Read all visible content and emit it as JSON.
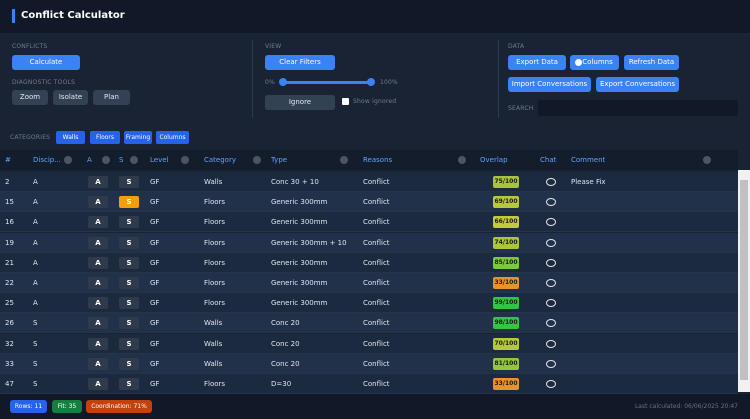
{
  "header": {
    "title": "Conflict Calculator"
  },
  "toolbar": {
    "conflicts": {
      "label": "CONFLICTS",
      "calculate": "Calculate",
      "diagnostic_label": "DIAGNOSTIC TOOLS",
      "zoom": "Zoom",
      "isolate": "Isolate",
      "plan": "Plan"
    },
    "view": {
      "label": "VIEW",
      "clear_filters": "Clear Filters",
      "slider_min": "0%",
      "slider_max": "100%",
      "ignore": "Ignore",
      "show_ignored": "Show ignored"
    },
    "data": {
      "label": "DATA",
      "export_data": "Export Data",
      "columns": "Columns",
      "refresh_data": "Refresh Data",
      "import_conversations": "Import Conversations",
      "export_conversations": "Export Conversations",
      "search_label": "SEARCH"
    }
  },
  "categories": {
    "label": "CATEGORIES",
    "chips": [
      "Walls",
      "Floors",
      "Framing",
      "Columns"
    ]
  },
  "table": {
    "columns": [
      "#",
      "Discip...",
      "A",
      "S",
      "Level",
      "Category",
      "Type",
      "Reasons",
      "Overlap",
      "Chat",
      "Comment"
    ],
    "rows": [
      {
        "id": "2",
        "discipline": "A",
        "a": "A",
        "s": "S",
        "s_active": false,
        "level": "GF",
        "category": "Walls",
        "type": "Conc 30 + 10",
        "reasons": "Conflict",
        "overlap": "75/100",
        "overlap_color": "#a9c43a",
        "comment": "Please Fix"
      },
      {
        "id": "15",
        "discipline": "A",
        "a": "A",
        "s": "S",
        "s_active": true,
        "level": "GF",
        "category": "Floors",
        "type": "Generic 300mm",
        "reasons": "Conflict",
        "overlap": "69/100",
        "overlap_color": "#b7c93a",
        "comment": ""
      },
      {
        "id": "16",
        "discipline": "A",
        "a": "A",
        "s": "S",
        "s_active": false,
        "level": "GF",
        "category": "Floors",
        "type": "Generic 300mm",
        "reasons": "Conflict",
        "overlap": "66/100",
        "overlap_color": "#c2cb3a",
        "comment": ""
      },
      {
        "id": "19",
        "discipline": "A",
        "a": "A",
        "s": "S",
        "s_active": false,
        "level": "GF",
        "category": "Floors",
        "type": "Generic 300mm + 10",
        "reasons": "Conflict",
        "overlap": "74/100",
        "overlap_color": "#abc63a",
        "comment": ""
      },
      {
        "id": "21",
        "discipline": "A",
        "a": "A",
        "s": "S",
        "s_active": false,
        "level": "GF",
        "category": "Floors",
        "type": "Generic 300mm",
        "reasons": "Conflict",
        "overlap": "85/100",
        "overlap_color": "#7cc83c",
        "comment": ""
      },
      {
        "id": "22",
        "discipline": "A",
        "a": "A",
        "s": "S",
        "s_active": false,
        "level": "GF",
        "category": "Floors",
        "type": "Generic 300mm",
        "reasons": "Conflict",
        "overlap": "33/100",
        "overlap_color": "#e8922a",
        "comment": ""
      },
      {
        "id": "25",
        "discipline": "A",
        "a": "A",
        "s": "S",
        "s_active": false,
        "level": "GF",
        "category": "Floors",
        "type": "Generic 300mm",
        "reasons": "Conflict",
        "overlap": "99/100",
        "overlap_color": "#33c445",
        "comment": ""
      },
      {
        "id": "26",
        "discipline": "S",
        "a": "A",
        "s": "S",
        "s_active": false,
        "level": "GF",
        "category": "Walls",
        "type": "Conc 20",
        "reasons": "Conflict",
        "overlap": "98/100",
        "overlap_color": "#36c445",
        "comment": ""
      },
      {
        "id": "32",
        "discipline": "S",
        "a": "A",
        "s": "S",
        "s_active": false,
        "level": "GF",
        "category": "Walls",
        "type": "Conc 20",
        "reasons": "Conflict",
        "overlap": "70/100",
        "overlap_color": "#b3c83a",
        "comment": ""
      },
      {
        "id": "33",
        "discipline": "S",
        "a": "A",
        "s": "S",
        "s_active": false,
        "level": "GF",
        "category": "Walls",
        "type": "Conc 20",
        "reasons": "Conflict",
        "overlap": "81/100",
        "overlap_color": "#92c63b",
        "comment": ""
      },
      {
        "id": "47",
        "discipline": "S",
        "a": "A",
        "s": "S",
        "s_active": false,
        "level": "GF",
        "category": "Floors",
        "type": "D=30",
        "reasons": "Conflict",
        "overlap": "33/100",
        "overlap_color": "#e8922a",
        "comment": ""
      }
    ]
  },
  "footer": {
    "rows": "Rows: 11",
    "fit": "Fit: 35",
    "coordination": "Coordination: 71%",
    "last_calculated": "Last calculated: 06/06/2025 20:47"
  }
}
